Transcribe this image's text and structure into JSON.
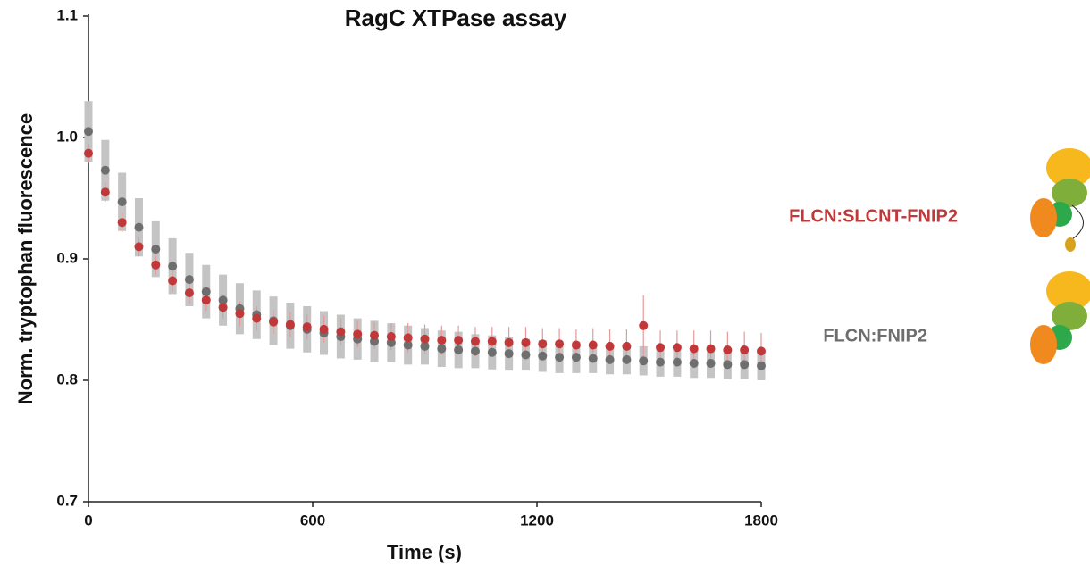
{
  "chart_data": {
    "type": "scatter",
    "title": "RagC XTPase assay",
    "x_label": "Time (s)",
    "y_label": "Norm. tryptophan fluorescence",
    "xlim": [
      0,
      1800
    ],
    "xticks": [
      0,
      600,
      1200,
      1800
    ],
    "ylim": [
      0.7,
      1.1
    ],
    "yticks": [
      0.7,
      0.8,
      0.9,
      {
        "value": 1,
        "label": "1.0"
      },
      1.1
    ],
    "x": [
      0,
      45,
      90,
      135,
      180,
      225,
      270,
      315,
      360,
      405,
      450,
      495,
      540,
      585,
      630,
      675,
      720,
      765,
      810,
      855,
      900,
      945,
      990,
      1035,
      1080,
      1125,
      1170,
      1215,
      1260,
      1305,
      1350,
      1395,
      1440,
      1485,
      1530,
      1575,
      1620,
      1665,
      1710,
      1755,
      1800
    ],
    "series": [
      {
        "name": "FLCN:FNIP2",
        "color": "#6e6e6e",
        "values": [
          1.005,
          0.973,
          0.947,
          0.926,
          0.908,
          0.894,
          0.883,
          0.873,
          0.866,
          0.859,
          0.854,
          0.849,
          0.845,
          0.842,
          0.839,
          0.836,
          0.834,
          0.832,
          0.831,
          0.829,
          0.828,
          0.826,
          0.825,
          0.824,
          0.823,
          0.822,
          0.821,
          0.82,
          0.819,
          0.819,
          0.818,
          0.817,
          0.817,
          0.816,
          0.815,
          0.815,
          0.814,
          0.814,
          0.813,
          0.813,
          0.812
        ],
        "errors": [
          0.025,
          0.025,
          0.024,
          0.024,
          0.023,
          0.023,
          0.022,
          0.022,
          0.021,
          0.021,
          0.02,
          0.02,
          0.019,
          0.019,
          0.018,
          0.018,
          0.017,
          0.017,
          0.016,
          0.016,
          0.015,
          0.015,
          0.015,
          0.014,
          0.014,
          0.014,
          0.013,
          0.013,
          0.013,
          0.013,
          0.012,
          0.012,
          0.012,
          0.012,
          0.012,
          0.012,
          0.012,
          0.012,
          0.012,
          0.012,
          0.012
        ]
      },
      {
        "name": "FLCN:SLCNT-FNIP2",
        "color": "#c0383a",
        "values": [
          0.987,
          0.955,
          0.93,
          0.91,
          0.895,
          0.882,
          0.872,
          0.866,
          0.86,
          0.855,
          0.851,
          0.848,
          0.846,
          0.844,
          0.842,
          0.84,
          0.838,
          0.837,
          0.836,
          0.835,
          0.834,
          0.833,
          0.833,
          0.832,
          0.832,
          0.831,
          0.831,
          0.83,
          0.83,
          0.829,
          0.829,
          0.828,
          0.828,
          0.845,
          0.827,
          0.827,
          0.826,
          0.826,
          0.825,
          0.825,
          0.824
        ],
        "errors": [
          0.008,
          0.008,
          0.008,
          0.008,
          0.008,
          0.009,
          0.009,
          0.009,
          0.009,
          0.01,
          0.01,
          0.01,
          0.01,
          0.01,
          0.011,
          0.011,
          0.011,
          0.011,
          0.011,
          0.012,
          0.012,
          0.012,
          0.012,
          0.012,
          0.012,
          0.013,
          0.013,
          0.013,
          0.013,
          0.013,
          0.014,
          0.014,
          0.014,
          0.025,
          0.014,
          0.014,
          0.015,
          0.015,
          0.015,
          0.015,
          0.015
        ]
      }
    ]
  }
}
